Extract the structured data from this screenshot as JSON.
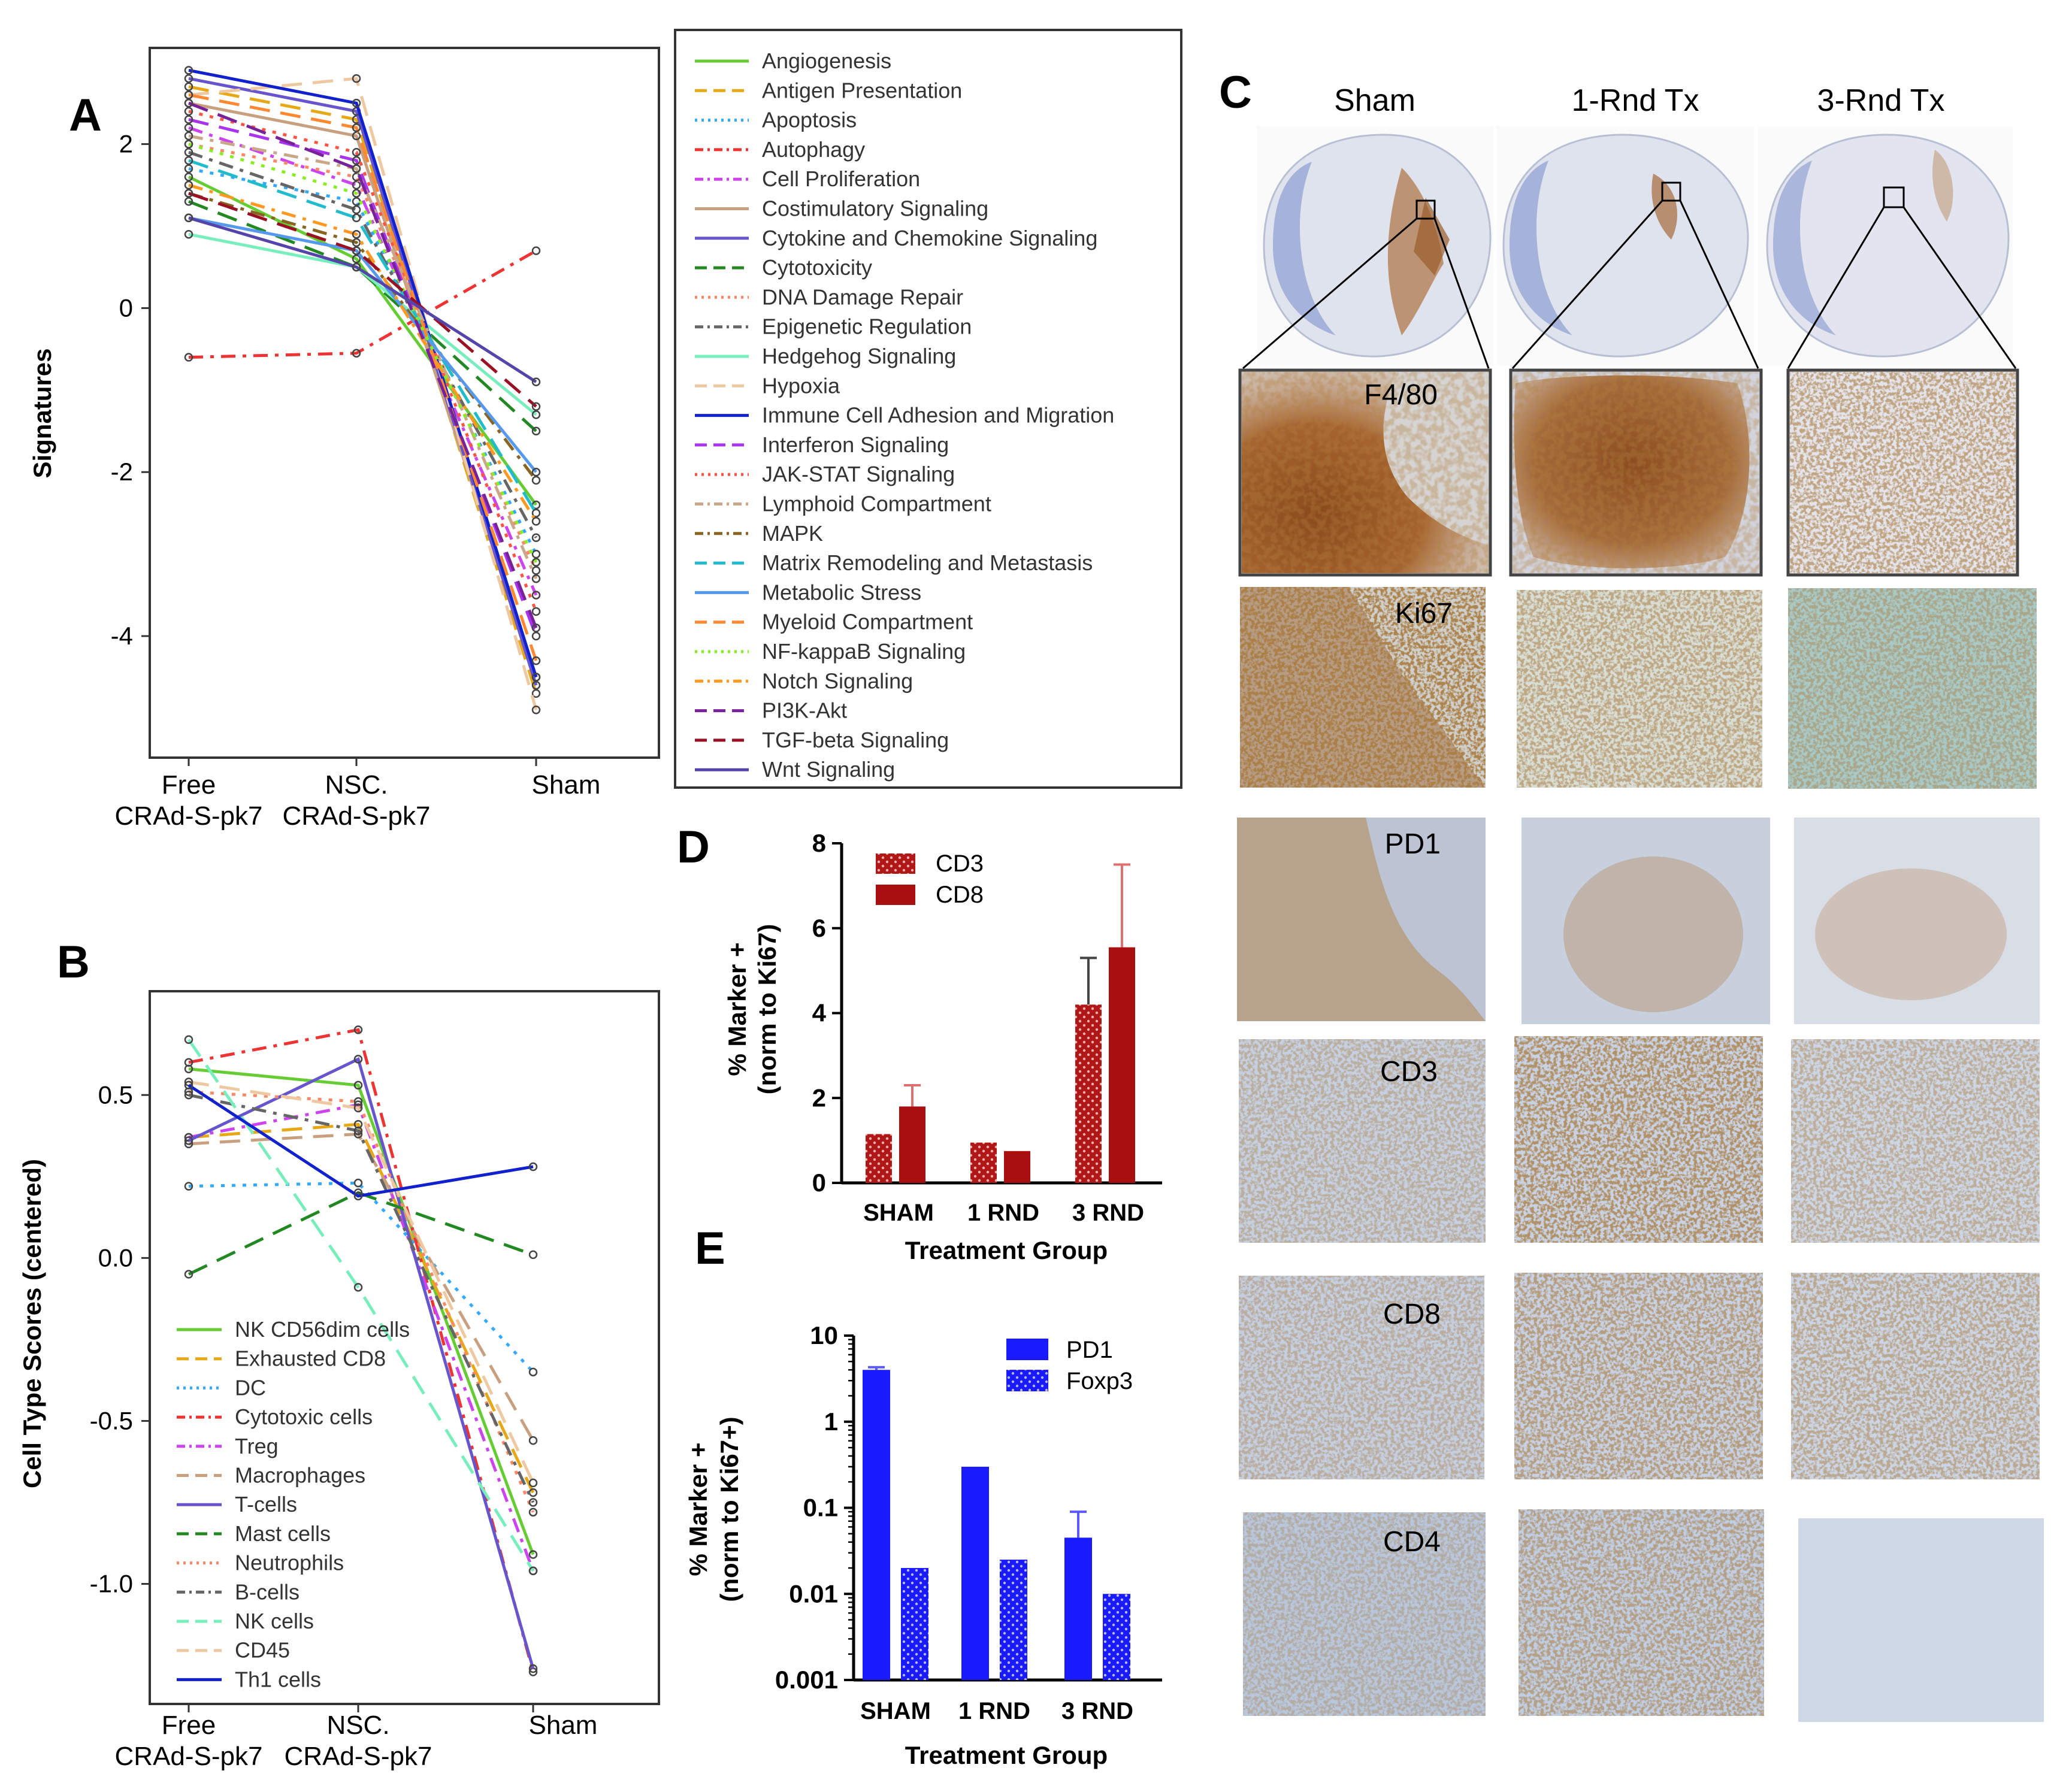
{
  "figure": {
    "panel_labels": [
      "A",
      "B",
      "C",
      "D",
      "E"
    ]
  },
  "panel_a": {
    "chart_data": {
      "type": "line",
      "ylabel": "Signatures",
      "x_categories": [
        "Free\nCRAd-S-pk7",
        "NSC.\nCRAd-S-pk7",
        "Sham"
      ],
      "x_category_lines": [
        [
          "Free",
          "CRAd-S-pk7"
        ],
        [
          "NSC.",
          "CRAd-S-pk7"
        ],
        [
          "Sham"
        ]
      ],
      "yticks": [
        2,
        0,
        -2,
        -4
      ],
      "ylim": [
        -5.3,
        3.1
      ],
      "legend_position": "outside-right",
      "series": [
        {
          "name": "Angiogenesis",
          "color": "#66cc33",
          "dash": "",
          "values": [
            1.6,
            0.6,
            -2.4
          ]
        },
        {
          "name": "Antigen Presentation",
          "color": "#e6a817",
          "dash": "34,18",
          "values": [
            2.7,
            2.3,
            -4.7
          ]
        },
        {
          "name": "Apoptosis",
          "color": "#33aaff",
          "dash": "6,12",
          "values": [
            1.7,
            1.3,
            -3.0
          ]
        },
        {
          "name": "Autophagy",
          "color": "#ee3333",
          "dash": "24,12,6,12",
          "values": [
            -0.6,
            -0.55,
            0.7
          ]
        },
        {
          "name": "Cell Proliferation",
          "color": "#cc44ee",
          "dash": "24,12,6,12",
          "values": [
            2.2,
            1.5,
            -3.5
          ]
        },
        {
          "name": "Costimulatory Signaling",
          "color": "#c8a080",
          "dash": "",
          "values": [
            2.5,
            2.1,
            -4.5
          ]
        },
        {
          "name": "Cytokine and Chemokine Signaling",
          "color": "#6655cc",
          "dash": "",
          "values": [
            2.8,
            2.4,
            -4.6
          ]
        },
        {
          "name": "Cytotoxicity",
          "color": "#228822",
          "dash": "34,18",
          "values": [
            1.3,
            0.5,
            -1.5
          ]
        },
        {
          "name": "DNA Damage Repair",
          "color": "#ff8866",
          "dash": "6,12",
          "values": [
            2.0,
            1.6,
            -3.2
          ]
        },
        {
          "name": "Epigenetic Regulation",
          "color": "#666666",
          "dash": "24,12,6,12",
          "values": [
            1.9,
            1.2,
            -2.8
          ]
        },
        {
          "name": "Hedgehog Signaling",
          "color": "#77eebb",
          "dash": "",
          "values": [
            0.9,
            0.5,
            -1.3
          ]
        },
        {
          "name": "Hypoxia",
          "color": "#eec8a0",
          "dash": "34,18",
          "values": [
            2.6,
            2.8,
            -4.9
          ]
        },
        {
          "name": "Immune Cell Adhesion and Migration",
          "color": "#1122cc",
          "dash": "",
          "values": [
            2.9,
            2.5,
            -4.5
          ]
        },
        {
          "name": "Interferon Signaling",
          "color": "#aa33ee",
          "dash": "34,18",
          "values": [
            2.3,
            1.8,
            -4.0
          ]
        },
        {
          "name": "JAK-STAT Signaling",
          "color": "#ff5544",
          "dash": "6,12",
          "values": [
            2.4,
            1.9,
            -3.7
          ]
        },
        {
          "name": "Lymphoid Compartment",
          "color": "#c8a888",
          "dash": "24,12,6,12",
          "values": [
            2.1,
            1.7,
            -3.3
          ]
        },
        {
          "name": "MAPK",
          "color": "#886622",
          "dash": "24,12,6,12",
          "values": [
            1.4,
            0.8,
            -2.1
          ]
        },
        {
          "name": "Matrix Remodeling and Metastasis",
          "color": "#22bbcc",
          "dash": "34,18",
          "values": [
            1.8,
            1.1,
            -2.5
          ]
        },
        {
          "name": "Metabolic Stress",
          "color": "#5599ee",
          "dash": "",
          "values": [
            1.1,
            0.7,
            -2.0
          ]
        },
        {
          "name": "Myeloid Compartment",
          "color": "#ff8833",
          "dash": "34,18",
          "values": [
            2.6,
            2.2,
            -4.3
          ]
        },
        {
          "name": "NF-kappaB Signaling",
          "color": "#88ee22",
          "dash": "6,12",
          "values": [
            2.0,
            1.4,
            -3.1
          ]
        },
        {
          "name": "Notch Signaling",
          "color": "#ff9922",
          "dash": "24,12,6,12",
          "values": [
            1.5,
            0.9,
            -2.6
          ]
        },
        {
          "name": "PI3K-Akt",
          "color": "#772299",
          "dash": "34,18",
          "values": [
            2.5,
            1.7,
            -3.9
          ]
        },
        {
          "name": "TGF-beta Signaling",
          "color": "#991122",
          "dash": "34,18",
          "values": [
            1.4,
            0.7,
            -1.2
          ]
        },
        {
          "name": "Wnt Signaling",
          "color": "#5544aa",
          "dash": "",
          "values": [
            1.1,
            0.5,
            -0.9
          ]
        }
      ]
    }
  },
  "panel_b": {
    "chart_data": {
      "type": "line",
      "ylabel": "Cell Type Scores (centered)",
      "x_categories": [
        "Free\nCRAd-S-pk7",
        "NSC.\nCRAd-S-pk7",
        "Sham"
      ],
      "x_category_lines": [
        [
          "Free",
          "CRAd-S-pk7"
        ],
        [
          "NSC.",
          "CRAd-S-pk7"
        ],
        [
          "Sham"
        ]
      ],
      "yticks": [
        "0.5",
        "0.0",
        "-0.5",
        "-1.0"
      ],
      "ytick_values": [
        0.5,
        0.0,
        -0.5,
        -1.0
      ],
      "ylim": [
        -1.35,
        0.8
      ],
      "legend_position": "bottom-left",
      "series": [
        {
          "name": "NK CD56dim cells",
          "color": "#66cc33",
          "dash": "",
          "values": [
            0.58,
            0.53,
            -0.91
          ]
        },
        {
          "name": "Exhausted CD8",
          "color": "#e6a817",
          "dash": "34,18",
          "values": [
            0.37,
            0.41,
            -0.72
          ]
        },
        {
          "name": "DC",
          "color": "#33aaff",
          "dash": "6,12",
          "values": [
            0.22,
            0.23,
            -0.35
          ]
        },
        {
          "name": "Cytotoxic cells",
          "color": "#ee3333",
          "dash": "24,12,6,12",
          "values": [
            0.6,
            0.7,
            -1.27
          ]
        },
        {
          "name": "Treg",
          "color": "#cc44ee",
          "dash": "24,12,6,12",
          "values": [
            0.37,
            0.47,
            -0.96
          ]
        },
        {
          "name": "Macrophages",
          "color": "#c8a080",
          "dash": "34,18",
          "values": [
            0.35,
            0.38,
            -0.56
          ]
        },
        {
          "name": "T-cells",
          "color": "#6655cc",
          "dash": "",
          "values": [
            0.36,
            0.61,
            -1.26
          ]
        },
        {
          "name": "Mast cells",
          "color": "#228822",
          "dash": "34,18",
          "values": [
            -0.05,
            0.2,
            0.01
          ]
        },
        {
          "name": "Neutrophils",
          "color": "#ff8866",
          "dash": "6,12",
          "values": [
            0.51,
            0.48,
            -0.78
          ]
        },
        {
          "name": "B-cells",
          "color": "#666666",
          "dash": "24,12,6,12",
          "values": [
            0.5,
            0.39,
            -0.75
          ]
        },
        {
          "name": "NK cells",
          "color": "#77eebb",
          "dash": "34,18",
          "values": [
            0.67,
            -0.09,
            -0.96
          ]
        },
        {
          "name": "CD45",
          "color": "#eec8a0",
          "dash": "34,18",
          "values": [
            0.54,
            0.46,
            -0.69
          ]
        },
        {
          "name": "Th1 cells",
          "color": "#1122cc",
          "dash": "",
          "values": [
            0.53,
            0.19,
            0.28
          ]
        }
      ]
    }
  },
  "panel_c": {
    "column_headers": [
      "Sham",
      "1-Rnd Tx",
      "3-Rnd Tx"
    ],
    "row_markers": [
      "F4/80",
      "Ki67",
      "PD1",
      "CD3",
      "CD8",
      "CD4"
    ]
  },
  "panel_d": {
    "chart_data": {
      "type": "bar",
      "ylabel_lines": [
        "% Marker +",
        "(norm to Ki67)"
      ],
      "xlabel": "Treatment Group",
      "categories": [
        "SHAM",
        "1 RND",
        "3 RND"
      ],
      "yticks": [
        0,
        2,
        4,
        6,
        8
      ],
      "ylim": [
        0,
        8
      ],
      "legend_position": "top-left",
      "series": [
        {
          "name": "CD3",
          "color": "#b01818",
          "pattern": "dotted",
          "values": [
            1.15,
            0.95,
            4.2
          ],
          "error": [
            0,
            0,
            1.1
          ]
        },
        {
          "name": "CD8",
          "color": "#a80f0f",
          "pattern": "solid",
          "values": [
            1.8,
            0.75,
            5.55
          ],
          "error": [
            0.5,
            0,
            1.95
          ]
        }
      ]
    }
  },
  "panel_e": {
    "chart_data": {
      "type": "bar",
      "yscale": "log",
      "ylabel_lines": [
        "% Marker +",
        "(norm to Ki67+)"
      ],
      "xlabel": "Treatment Group",
      "categories": [
        "SHAM",
        "1 RND",
        "3 RND"
      ],
      "yticks": [
        "10",
        "1",
        "0.1",
        "0.01",
        "0.001"
      ],
      "ytick_values": [
        10,
        1,
        0.1,
        0.01,
        0.001
      ],
      "ylim": [
        0.001,
        10
      ],
      "legend_position": "top-right",
      "series": [
        {
          "name": "PD1",
          "color": "#1a1aff",
          "pattern": "solid",
          "values": [
            4.0,
            0.3,
            0.045
          ],
          "error": [
            0.3,
            0,
            0.045
          ]
        },
        {
          "name": "Foxp3",
          "color": "#1a1aff",
          "pattern": "dotted",
          "values": [
            0.02,
            0.025,
            0.01
          ],
          "error": [
            0,
            0,
            0
          ]
        }
      ]
    }
  }
}
